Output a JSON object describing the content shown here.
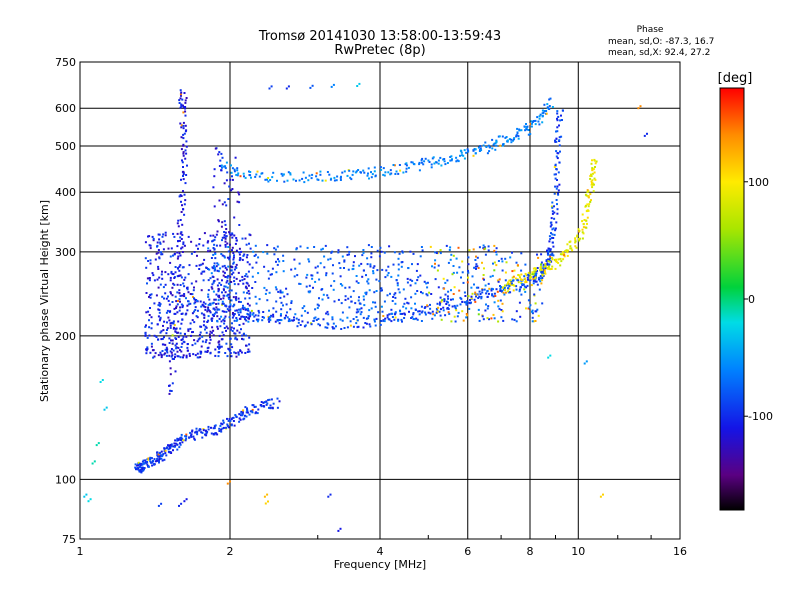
{
  "chart_data": {
    "type": "scatter",
    "title": "Tromsø 20141030 13:58:00-13:59:43",
    "subtitle": "RwPretec (8p)",
    "xlabel": "Frequency [MHz]",
    "ylabel": "Stationary phase Virtual Height [km]",
    "x_scale": "log",
    "y_scale": "log",
    "xlim": [
      1,
      16
    ],
    "ylim": [
      75,
      750
    ],
    "x_ticks": [
      1,
      2,
      4,
      6,
      8,
      10,
      16
    ],
    "x_tick_labels": [
      "1",
      "2",
      "4",
      "6",
      "8",
      "10",
      "16"
    ],
    "y_ticks": [
      75,
      100,
      200,
      300,
      400,
      500,
      600,
      750
    ],
    "y_tick_labels": [
      "75",
      "100",
      "200",
      "300",
      "400",
      "500",
      "600",
      "750"
    ],
    "grid": true,
    "phase_info": {
      "heading": "Phase",
      "line_o": "mean, sd,O: -87.3, 16.7",
      "line_x": "mean, sd,X: 92.4, 27.2"
    },
    "colorbar": {
      "label": "[deg]",
      "range": [
        -180,
        180
      ],
      "ticks": [
        100,
        0,
        -100
      ],
      "tick_labels": [
        "100",
        "0",
        "-100"
      ]
    },
    "traces": [
      {
        "desc": "E/F1 low trace",
        "points": [
          [
            1.3,
            106
          ],
          [
            1.32,
            106
          ],
          [
            1.34,
            107
          ],
          [
            1.38,
            108
          ],
          [
            1.42,
            110
          ],
          [
            1.46,
            112
          ],
          [
            1.5,
            115
          ],
          [
            1.55,
            118
          ],
          [
            1.6,
            121
          ],
          [
            1.7,
            124
          ],
          [
            1.8,
            126
          ],
          [
            1.9,
            128
          ],
          [
            2.0,
            132
          ],
          [
            2.1,
            136
          ],
          [
            2.2,
            140
          ],
          [
            2.35,
            143
          ],
          [
            2.5,
            145
          ]
        ],
        "phase": -95
      },
      {
        "desc": "vertical spread ~1.55 MHz",
        "points": [
          [
            1.52,
            150
          ],
          [
            1.55,
            200
          ],
          [
            1.58,
            280
          ],
          [
            1.6,
            360
          ],
          [
            1.62,
            440
          ],
          [
            1.62,
            520
          ],
          [
            1.6,
            600
          ],
          [
            1.62,
            650
          ]
        ],
        "phase": -110
      },
      {
        "desc": "F-layer O-mode lower trace",
        "points": [
          [
            1.6,
            240
          ],
          [
            1.8,
            232
          ],
          [
            2.0,
            226
          ],
          [
            2.3,
            220
          ],
          [
            2.6,
            215
          ],
          [
            3.0,
            212
          ],
          [
            3.5,
            212
          ],
          [
            4.0,
            215
          ],
          [
            4.5,
            220
          ],
          [
            5.0,
            226
          ],
          [
            5.5,
            232
          ],
          [
            6.0,
            238
          ],
          [
            6.5,
            244
          ],
          [
            7.0,
            250
          ],
          [
            7.5,
            256
          ],
          [
            8.0,
            262
          ],
          [
            8.3,
            268
          ],
          [
            8.5,
            275
          ],
          [
            8.7,
            285
          ],
          [
            8.8,
            300
          ],
          [
            8.9,
            330
          ],
          [
            9.0,
            380
          ],
          [
            9.05,
            450
          ],
          [
            9.1,
            520
          ],
          [
            9.2,
            600
          ]
        ],
        "phase": -90
      },
      {
        "desc": "F-layer X-mode trace",
        "points": [
          [
            7.0,
            255
          ],
          [
            7.5,
            260
          ],
          [
            8.0,
            268
          ],
          [
            8.5,
            275
          ],
          [
            9.0,
            285
          ],
          [
            9.5,
            300
          ],
          [
            10.0,
            320
          ],
          [
            10.3,
            350
          ],
          [
            10.5,
            390
          ],
          [
            10.7,
            430
          ],
          [
            10.8,
            470
          ]
        ],
        "phase": 90
      },
      {
        "desc": "multi-hop upper trace",
        "points": [
          [
            1.9,
            455
          ],
          [
            2.1,
            440
          ],
          [
            2.4,
            432
          ],
          [
            2.8,
            430
          ],
          [
            3.2,
            432
          ],
          [
            3.6,
            436
          ],
          [
            4.0,
            442
          ],
          [
            4.5,
            450
          ],
          [
            5.0,
            460
          ],
          [
            5.5,
            470
          ],
          [
            6.0,
            482
          ],
          [
            6.5,
            495
          ],
          [
            7.0,
            510
          ],
          [
            7.5,
            525
          ],
          [
            8.0,
            545
          ],
          [
            8.5,
            580
          ],
          [
            8.8,
            620
          ]
        ],
        "phase": -60
      }
    ],
    "clusters": [
      {
        "desc": "diffuse F spread",
        "x_range": [
          1.35,
          2.2
        ],
        "y_range": [
          180,
          330
        ],
        "count": 650,
        "phase": -105
      },
      {
        "desc": "main band spread",
        "x_range": [
          1.8,
          8.5
        ],
        "y_range": [
          214,
          310
        ],
        "count": 700,
        "phase": -80
      },
      {
        "desc": "mid-band column",
        "x_range": [
          1.85,
          2.1
        ],
        "y_range": [
          240,
          500
        ],
        "count": 80,
        "phase": -110
      }
    ],
    "isolated_points": [
      {
        "x": 1.02,
        "y": 92,
        "phase": -30
      },
      {
        "x": 1.04,
        "y": 90,
        "phase": -20
      },
      {
        "x": 1.06,
        "y": 108,
        "phase": -10
      },
      {
        "x": 1.08,
        "y": 118,
        "phase": -10
      },
      {
        "x": 1.1,
        "y": 160,
        "phase": -20
      },
      {
        "x": 1.12,
        "y": 140,
        "phase": -30
      },
      {
        "x": 1.44,
        "y": 88,
        "phase": -90
      },
      {
        "x": 1.58,
        "y": 88,
        "phase": -100
      },
      {
        "x": 1.62,
        "y": 90,
        "phase": -110
      },
      {
        "x": 1.98,
        "y": 98,
        "phase": 140
      },
      {
        "x": 2.35,
        "y": 92,
        "phase": 120
      },
      {
        "x": 2.36,
        "y": 89,
        "phase": 110
      },
      {
        "x": 3.15,
        "y": 92,
        "phase": -100
      },
      {
        "x": 3.3,
        "y": 78,
        "phase": -110
      },
      {
        "x": 2.4,
        "y": 660,
        "phase": -90
      },
      {
        "x": 2.6,
        "y": 660,
        "phase": -100
      },
      {
        "x": 2.9,
        "y": 662,
        "phase": -80
      },
      {
        "x": 3.2,
        "y": 665,
        "phase": -60
      },
      {
        "x": 3.6,
        "y": 668,
        "phase": -30
      },
      {
        "x": 8.7,
        "y": 180,
        "phase": -20
      },
      {
        "x": 10.3,
        "y": 175,
        "phase": -50
      },
      {
        "x": 11.1,
        "y": 92,
        "phase": 110
      },
      {
        "x": 13.2,
        "y": 600,
        "phase": 140
      },
      {
        "x": 13.6,
        "y": 525,
        "phase": -100
      }
    ]
  }
}
